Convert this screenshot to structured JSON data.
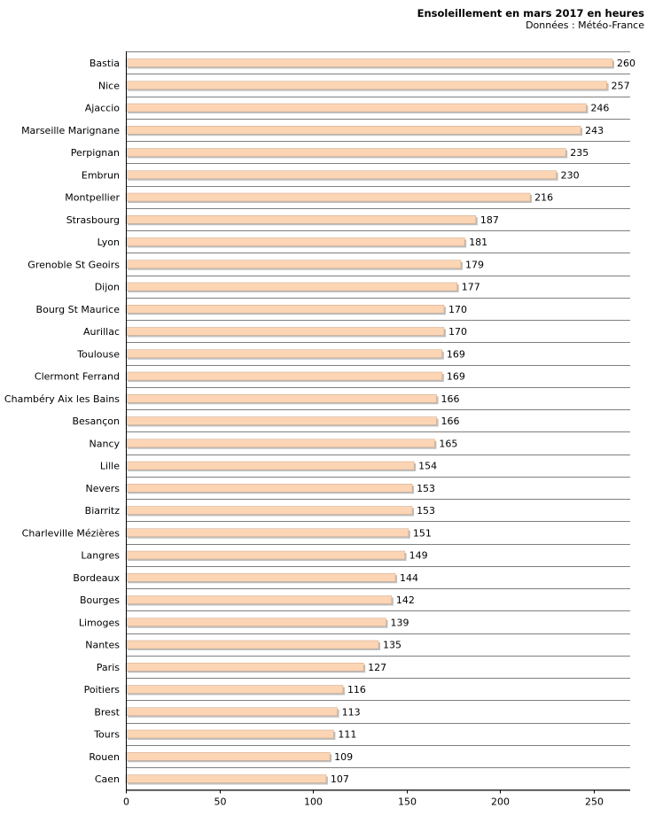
{
  "chart_data": {
    "type": "bar",
    "orientation": "horizontal",
    "title": "Ensoleillement en mars 2017 en heures",
    "subtitle": "Données : Météo-France",
    "xlabel": "",
    "ylabel": "",
    "xlim": [
      0,
      270
    ],
    "xticks": [
      0,
      50,
      100,
      150,
      200,
      250
    ],
    "grid": true,
    "legend": "none",
    "colors": {
      "bar": "#fcd5b5",
      "bar_edge": "#c9a68a",
      "shadow": "#bfbfbf",
      "grid": "#7f7f7f"
    },
    "categories": [
      "Bastia",
      "Nice",
      "Ajaccio",
      "Marseille Marignane",
      "Perpignan",
      "Embrun",
      "Montpellier",
      "Strasbourg",
      "Lyon",
      "Grenoble St Geoirs",
      "Dijon",
      "Bourg St Maurice",
      "Aurillac",
      "Toulouse",
      "Clermont Ferrand",
      "Chambéry Aix les Bains",
      "Besançon",
      "Nancy",
      "Lille",
      "Nevers",
      "Biarritz",
      "Charleville Mézières",
      "Langres",
      "Bordeaux",
      "Bourges",
      "Limoges",
      "Nantes",
      "Paris",
      "Poitiers",
      "Brest",
      "Tours",
      "Rouen",
      "Caen"
    ],
    "values": [
      260,
      257,
      246,
      243,
      235,
      230,
      216,
      187,
      181,
      179,
      177,
      170,
      170,
      169,
      169,
      166,
      166,
      165,
      154,
      153,
      153,
      151,
      149,
      144,
      142,
      139,
      135,
      127,
      116,
      113,
      111,
      109,
      107
    ]
  }
}
